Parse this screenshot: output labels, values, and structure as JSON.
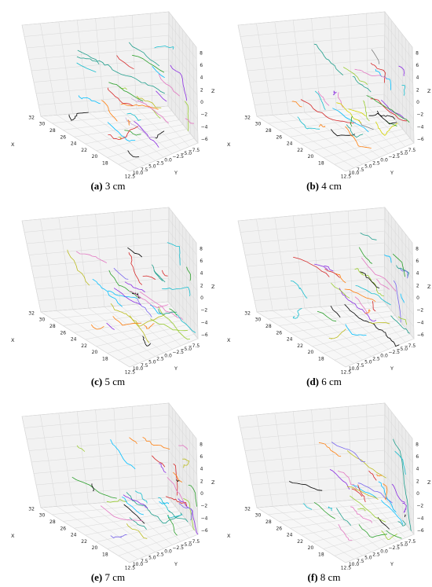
{
  "chart_data": [
    {
      "type": "scatter",
      "label": "(a)",
      "caption": "3 cm",
      "xlabel": "X",
      "ylabel": "Y",
      "zlabel": "Z",
      "x_ticks": [
        "18",
        "20",
        "22",
        "24",
        "26",
        "28",
        "30",
        "32"
      ],
      "y_ticks": [
        "12.5",
        "10.0",
        "7.5",
        "5.0",
        "2.5",
        "0.0",
        "−2.5",
        "−5.0",
        "−7.5"
      ],
      "z_ticks": [
        "−6",
        "−4",
        "−2",
        "0",
        "2",
        "4",
        "6",
        "8"
      ],
      "xlim": [
        17,
        33
      ],
      "ylim": [
        -8.5,
        13.5
      ],
      "zlim": [
        -7,
        9
      ],
      "grid": true,
      "series_colors": [
        "#000000",
        "#1f9e8c",
        "#9acd32",
        "#8a2be2",
        "#e377c2",
        "#00bfff",
        "#2ca02c",
        "#ff7f0e",
        "#d62728",
        "#17becf",
        "#c5b0d5",
        "#bcbd22"
      ]
    },
    {
      "type": "scatter",
      "label": "(b)",
      "caption": "4 cm",
      "xlabel": "X",
      "ylabel": "Y",
      "zlabel": "Z",
      "x_ticks": [
        "18",
        "20",
        "22",
        "24",
        "26",
        "28",
        "30",
        "32"
      ],
      "y_ticks": [
        "12.5",
        "10.0",
        "7.5",
        "5.0",
        "2.5",
        "0.0",
        "−2.5",
        "−5.0",
        "−7.5"
      ],
      "z_ticks": [
        "−6",
        "−4",
        "−2",
        "0",
        "2",
        "4",
        "6",
        "8"
      ],
      "xlim": [
        17,
        33
      ],
      "ylim": [
        -8.5,
        13.5
      ],
      "zlim": [
        -7,
        9
      ],
      "grid": true,
      "series_colors": [
        "#d4d400",
        "#000000",
        "#d62728",
        "#8a2be2",
        "#1f9e8c",
        "#00bfff",
        "#e377c2",
        "#2ca02c",
        "#17becf",
        "#ff7f0e",
        "#9acd32",
        "#7f7f7f"
      ]
    },
    {
      "type": "scatter",
      "label": "(c)",
      "caption": "5 cm",
      "xlabel": "X",
      "ylabel": "Y",
      "zlabel": "Z",
      "x_ticks": [
        "18",
        "20",
        "22",
        "24",
        "26",
        "28",
        "30",
        "32"
      ],
      "y_ticks": [
        "12.5",
        "10.0",
        "7.5",
        "5.0",
        "2.5",
        "0.0",
        "−2.5",
        "−5.0",
        "−7.5"
      ],
      "z_ticks": [
        "−6",
        "−4",
        "−2",
        "0",
        "2",
        "4",
        "6",
        "8"
      ],
      "xlim": [
        17,
        33
      ],
      "ylim": [
        -8.5,
        13.5
      ],
      "zlim": [
        -7,
        9
      ],
      "grid": true,
      "series_colors": [
        "#bcbd22",
        "#8a2be2",
        "#1f9e8c",
        "#00bfff",
        "#2ca02c",
        "#e377c2",
        "#000000",
        "#d62728",
        "#17becf",
        "#ff7f0e",
        "#7b68ee",
        "#9acd32"
      ]
    },
    {
      "type": "scatter",
      "label": "(d)",
      "caption": "6 cm",
      "xlabel": "X",
      "ylabel": "Y",
      "zlabel": "Z",
      "x_ticks": [
        "18",
        "20",
        "22",
        "24",
        "26",
        "28",
        "30",
        "32"
      ],
      "y_ticks": [
        "12.5",
        "10.0",
        "7.5",
        "5.0",
        "2.5",
        "0.0",
        "−2.5",
        "−5.0",
        "−7.5"
      ],
      "z_ticks": [
        "−6",
        "−4",
        "−2",
        "0",
        "2",
        "4",
        "6",
        "8"
      ],
      "xlim": [
        17,
        33
      ],
      "ylim": [
        -8.5,
        13.5
      ],
      "zlim": [
        -7,
        9
      ],
      "grid": true,
      "series_colors": [
        "#9acd32",
        "#8a2be2",
        "#000000",
        "#d62728",
        "#1f9e8c",
        "#00bfff",
        "#e377c2",
        "#2ca02c",
        "#ff7f0e",
        "#17becf",
        "#bcbd22",
        "#7b68ee"
      ]
    },
    {
      "type": "scatter",
      "label": "(e)",
      "caption": "7 cm",
      "xlabel": "X",
      "ylabel": "Y",
      "zlabel": "Z",
      "x_ticks": [
        "18",
        "20",
        "22",
        "24",
        "26",
        "28",
        "30",
        "32"
      ],
      "y_ticks": [
        "12.5",
        "10.0",
        "7.5",
        "5.0",
        "2.5",
        "0.0",
        "−2.5",
        "−5.0",
        "−7.5"
      ],
      "z_ticks": [
        "−6",
        "−4",
        "−2",
        "0",
        "2",
        "4",
        "6",
        "8"
      ],
      "xlim": [
        17,
        33
      ],
      "ylim": [
        -8.5,
        13.5
      ],
      "zlim": [
        -7,
        9
      ],
      "grid": true,
      "series_colors": [
        "#9acd32",
        "#8a2be2",
        "#1f9e8c",
        "#e377c2",
        "#00bfff",
        "#2ca02c",
        "#d62728",
        "#000000",
        "#ff7f0e",
        "#17becf",
        "#7b68ee",
        "#bcbd22"
      ]
    },
    {
      "type": "scatter",
      "label": "(f)",
      "caption": "8 cm",
      "xlabel": "X",
      "ylabel": "Y",
      "zlabel": "Z",
      "x_ticks": [
        "18",
        "20",
        "22",
        "24",
        "26",
        "28",
        "30",
        "32"
      ],
      "y_ticks": [
        "12.5",
        "10.0",
        "7.5",
        "5.0",
        "2.5",
        "0.0",
        "−2.5",
        "−5.0",
        "−7.5"
      ],
      "z_ticks": [
        "−6",
        "−4",
        "−2",
        "0",
        "2",
        "4",
        "6",
        "8"
      ],
      "xlim": [
        17,
        33
      ],
      "ylim": [
        -8.5,
        13.5
      ],
      "zlim": [
        -7,
        9
      ],
      "grid": true,
      "series_colors": [
        "#9acd32",
        "#e377c2",
        "#1f9e8c",
        "#8a2be2",
        "#000000",
        "#d62728",
        "#00bfff",
        "#2ca02c",
        "#ff7f0e",
        "#17becf",
        "#bcbd22",
        "#7b68ee"
      ]
    }
  ]
}
